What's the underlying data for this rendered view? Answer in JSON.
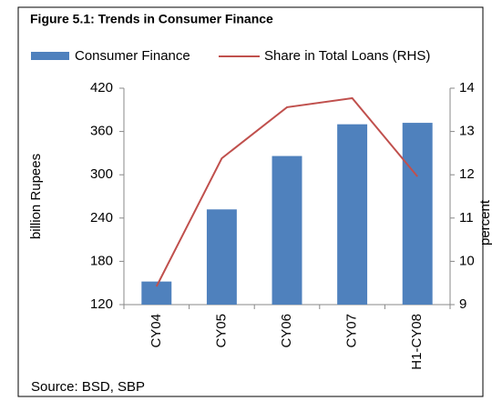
{
  "chart_data": {
    "type": "bar_line",
    "title": "Figure 5.1: Trends in Consumer Finance",
    "y_label": "billion Rupees",
    "y2_label": "percent",
    "source": "Source: BSD, SBP",
    "categories": [
      "CY04",
      "CY05",
      "CY06",
      "CY07",
      "H1-CY08"
    ],
    "series": [
      {
        "name": "Consumer Finance",
        "color": "#4f81bd",
        "type": "bar",
        "values": [
          152,
          252,
          326,
          370,
          372
        ]
      },
      {
        "name": "Share in Total Loans (RHS)",
        "color": "#c0504d",
        "type": "line",
        "axis": "y2",
        "values": [
          9.42,
          12.38,
          13.56,
          13.77,
          11.96
        ]
      }
    ],
    "ylim": [
      120,
      420
    ],
    "yticks": [
      120,
      180,
      240,
      300,
      360,
      420
    ],
    "y2lim": [
      9,
      14
    ],
    "y2ticks": [
      9,
      10,
      11,
      12,
      13,
      14
    ]
  }
}
